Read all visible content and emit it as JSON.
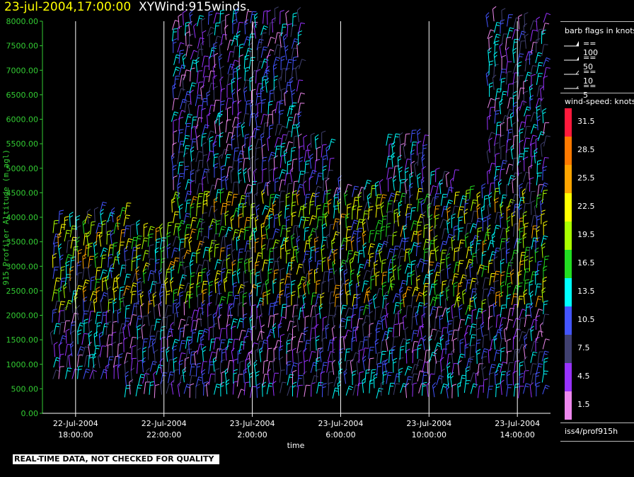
{
  "title": {
    "datetime": "23-jul-2004,17:00:00",
    "name": "XYWind:915winds."
  },
  "legend": {
    "flags_title": "barb flags in knots",
    "flags": [
      {
        "label": "== 100",
        "knots": 100
      },
      {
        "label": "== 50",
        "knots": 50
      },
      {
        "label": "== 10",
        "knots": 10
      },
      {
        "label": "== 5",
        "knots": 5
      }
    ],
    "speed_title": "wind-speed: knots",
    "speed_scale": [
      {
        "label": "31.5",
        "color": "#ff1a3c"
      },
      {
        "label": "28.5",
        "color": "#ff7a00"
      },
      {
        "label": "25.5",
        "color": "#ffa500"
      },
      {
        "label": "22.5",
        "color": "#ffff00"
      },
      {
        "label": "19.5",
        "color": "#aaff00"
      },
      {
        "label": "16.5",
        "color": "#22dd22"
      },
      {
        "label": "13.5",
        "color": "#00ffff"
      },
      {
        "label": "10.5",
        "color": "#4455ff"
      },
      {
        "label": "7.5",
        "color": "#404070"
      },
      {
        "label": "4.5",
        "color": "#9933ff"
      },
      {
        "label": "1.5",
        "color": "#ee88ee"
      }
    ],
    "station": "iss4/prof915h"
  },
  "banner": "REAL-TIME DATA, NOT CHECKED FOR QUALITY",
  "chart_data": {
    "type": "scatter",
    "title": "23-jul-2004,17:00:00  XYWind:915winds.",
    "xlabel": "time",
    "ylabel": "915 Profiler Altitude (m agl)",
    "ylim": [
      0,
      8000
    ],
    "xlim_hours_from_start": [
      -1.5,
      21.5
    ],
    "y_ticks": [
      "0.00",
      "500.00",
      "1000.00",
      "1500.00",
      "2000.00",
      "2500.00",
      "3000.00",
      "3500.00",
      "4000.00",
      "4500.00",
      "5000.00",
      "5500.00",
      "6000.00",
      "6500.00",
      "7000.00",
      "7500.00",
      "8000.00"
    ],
    "x_ticks": [
      {
        "date": "22-Jul-2004",
        "time": "18:00:00"
      },
      {
        "date": "22-Jul-2004",
        "time": "22:00:00"
      },
      {
        "date": "23-Jul-2004",
        "time": "2:00:00"
      },
      {
        "date": "23-Jul-2004",
        "time": "6:00:00"
      },
      {
        "date": "23-Jul-2004",
        "time": "10:00:00"
      },
      {
        "date": "23-Jul-2004",
        "time": "14:00:00"
      }
    ],
    "grid": "vertical lines at x ticks",
    "legend_position": "right",
    "marks": "wind barbs colored by wind speed (knots)"
  }
}
